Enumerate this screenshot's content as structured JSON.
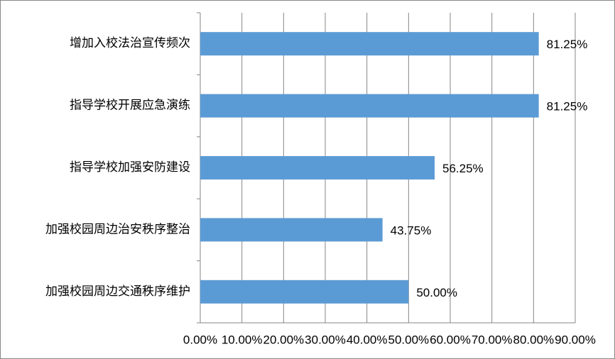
{
  "chart_data": {
    "type": "bar",
    "orientation": "horizontal",
    "categories": [
      "增加入校法治宣传频次",
      "指导学校开展应急演练",
      "指导学校加强安防建设",
      "加强校园周边治安秩序整治",
      "加强校园周边交通秩序维护"
    ],
    "values": [
      81.25,
      81.25,
      56.25,
      43.75,
      50
    ],
    "value_labels": [
      "81.25%",
      "81.25%",
      "56.25%",
      "43.75%",
      "50.00%"
    ],
    "color": "#5b9bd5",
    "xlim": [
      0,
      90
    ],
    "xticks": [
      {
        "value": 0,
        "label": "0.00%"
      },
      {
        "value": 10,
        "label": "10.00%"
      },
      {
        "value": 20,
        "label": "20.00%"
      },
      {
        "value": 30,
        "label": "30.00%"
      },
      {
        "value": 40,
        "label": "40.00%"
      },
      {
        "value": 50,
        "label": "50.00%"
      },
      {
        "value": 60,
        "label": "60.00%"
      },
      {
        "value": 70,
        "label": "70.00%"
      },
      {
        "value": 80,
        "label": "80.00%"
      },
      {
        "value": 90,
        "label": "90.00%"
      }
    ],
    "grid": true
  }
}
